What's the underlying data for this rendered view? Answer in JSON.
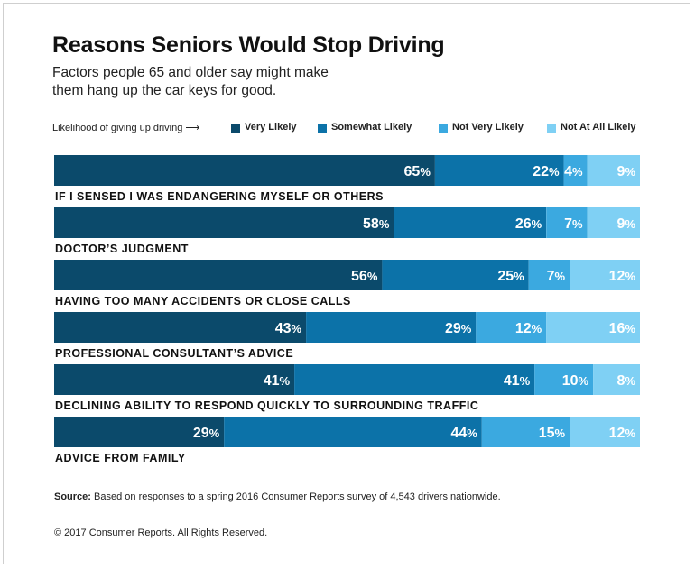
{
  "colors": {
    "very_likely": "#0b4a6b",
    "somewhat_likely": "#0c72a8",
    "not_very_likely": "#3ba9e0",
    "not_at_all_likely": "#7fd0f4"
  },
  "legend": {
    "intro": "Likelihood of giving up driving ⟶",
    "items": [
      "Very Likely",
      "Somewhat Likely",
      "Not Very Likely",
      "Not At All Likely"
    ]
  },
  "chart_data": {
    "type": "bar",
    "orientation": "horizontal",
    "stacked": true,
    "title": "Reasons Seniors Would Stop Driving",
    "subtitle": "Factors people 65 and older say might make\nthem hang up the car keys for good.",
    "categories": [
      "IF I SENSED I WAS ENDANGERING MYSELF OR OTHERS",
      "DOCTOR’S JUDGMENT",
      "HAVING TOO MANY ACCIDENTS OR CLOSE CALLS",
      "PROFESSIONAL CONSULTANT’S ADVICE",
      "DECLINING ABILITY TO RESPOND QUICKLY TO SURROUNDING TRAFFIC",
      "ADVICE FROM FAMILY"
    ],
    "series": [
      {
        "name": "Very Likely",
        "values": [
          65,
          58,
          56,
          43,
          41,
          29
        ]
      },
      {
        "name": "Somewhat Likely",
        "values": [
          22,
          26,
          25,
          29,
          41,
          44
        ]
      },
      {
        "name": "Not Very Likely",
        "values": [
          4,
          7,
          7,
          12,
          10,
          15
        ]
      },
      {
        "name": "Not At All Likely",
        "values": [
          9,
          9,
          12,
          16,
          8,
          12
        ]
      }
    ],
    "value_suffix": "%",
    "xlim": [
      0,
      100
    ],
    "grid": false,
    "legend_position": "top"
  },
  "source": {
    "label": "Source:",
    "text": " Based on responses to a spring 2016 Consumer Reports survey of 4,543 drivers nationwide."
  },
  "copyright": "© 2017 Consumer Reports. All Rights Reserved."
}
